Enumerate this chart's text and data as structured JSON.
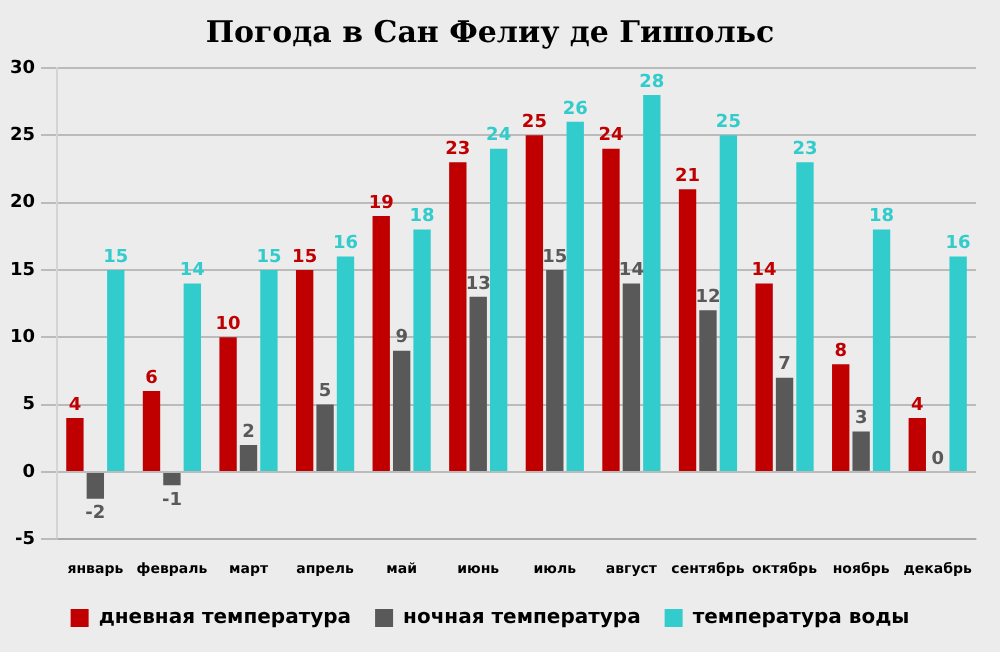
{
  "chart_data": {
    "type": "bar",
    "title": "Погода в Сан Фелиу де Гишольс",
    "categories": [
      "январь",
      "февраль",
      "март",
      "апрель",
      "май",
      "июнь",
      "июль",
      "август",
      "сентябрь",
      "октябрь",
      "ноябрь",
      "декабрь"
    ],
    "series": [
      {
        "name": "дневная температура",
        "color": "#c00000",
        "values": [
          4,
          6,
          10,
          15,
          19,
          23,
          25,
          24,
          21,
          14,
          8,
          4
        ]
      },
      {
        "name": "ночная температура",
        "color": "#595959",
        "values": [
          -2,
          -1,
          2,
          5,
          9,
          13,
          15,
          14,
          12,
          7,
          3,
          0
        ]
      },
      {
        "name": "температура воды",
        "color": "#33cccc",
        "values": [
          15,
          14,
          15,
          16,
          18,
          24,
          26,
          28,
          25,
          23,
          18,
          16
        ]
      }
    ],
    "ylim": [
      -5,
      30
    ],
    "yticks": [
      -5,
      0,
      5,
      10,
      15,
      20,
      25,
      30
    ],
    "grid": "y",
    "legend": "bottom",
    "data_labels": true
  }
}
